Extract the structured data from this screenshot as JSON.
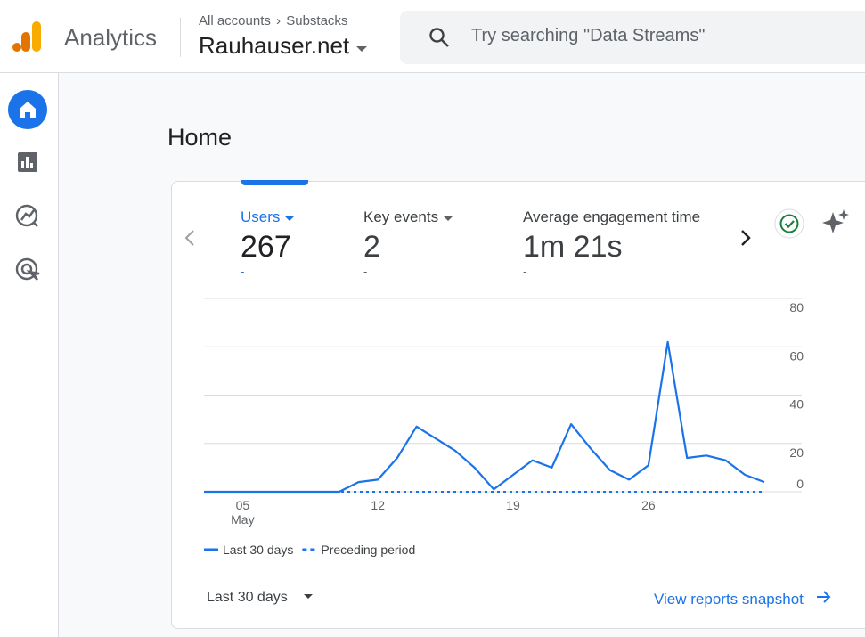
{
  "header": {
    "product": "Analytics",
    "breadcrumb": [
      "All accounts",
      "Substacks"
    ],
    "property": "Rauhauser.net",
    "search_placeholder": "Try searching \"Data Streams\""
  },
  "page_title": "Home",
  "metrics": [
    {
      "label": "Users",
      "value": "267",
      "change": "-"
    },
    {
      "label": "Key events",
      "value": "2",
      "change": "-"
    },
    {
      "label": "Average engagement time",
      "value": "1m 21s",
      "change": "-"
    }
  ],
  "footer": {
    "range": "Last 30 days",
    "link": "View reports snapshot"
  },
  "chart_data": {
    "type": "line",
    "categories": [
      null,
      null,
      "05",
      null,
      null,
      null,
      null,
      null,
      null,
      "12",
      null,
      null,
      null,
      null,
      null,
      null,
      "19",
      null,
      null,
      null,
      null,
      null,
      null,
      "26",
      null,
      null,
      null,
      null,
      null,
      null
    ],
    "month_label": "May",
    "series": [
      {
        "name": "Last 30 days",
        "color": "#1a73e8",
        "values": [
          0,
          0,
          0,
          0,
          0,
          0,
          0,
          0,
          4,
          5,
          14,
          27,
          22,
          17,
          10,
          1,
          7,
          13,
          10,
          28,
          18,
          9,
          5,
          11,
          62,
          14,
          15,
          13,
          7,
          4
        ]
      },
      {
        "name": "Preceding period",
        "color": "#1a73e8",
        "dashed": true,
        "values": [
          0,
          0,
          0,
          0,
          0,
          0,
          0,
          0,
          0,
          0,
          0,
          0,
          0,
          0,
          0,
          0,
          0,
          0,
          0,
          0,
          0,
          0,
          0,
          0,
          0,
          0,
          0,
          0,
          0,
          0
        ]
      }
    ],
    "ylim": [
      0,
      80
    ],
    "yticks": [
      0,
      20,
      40,
      60,
      80
    ],
    "grid": true,
    "y_axis_side": "right",
    "legend": "bottom-left"
  }
}
